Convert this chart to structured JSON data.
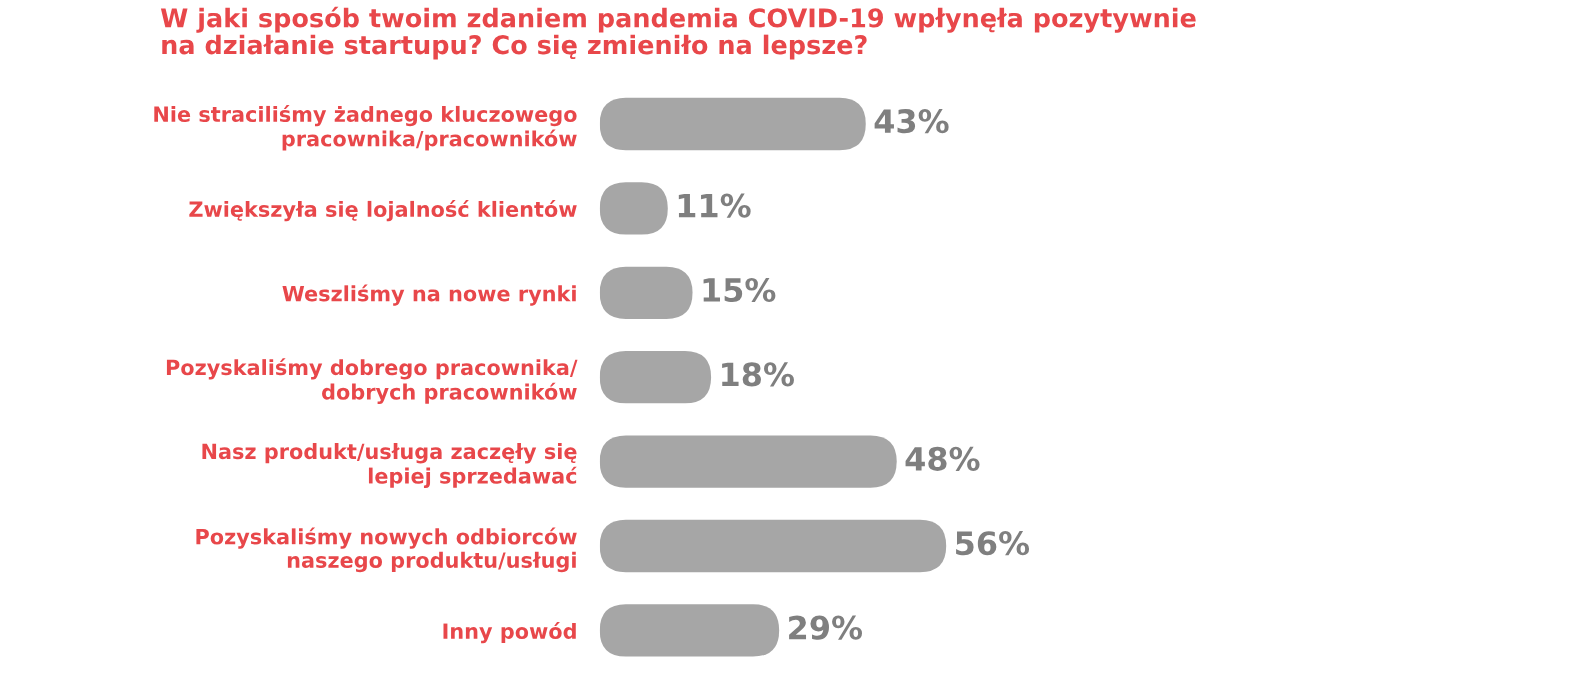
{
  "chart_data": {
    "type": "bar",
    "orientation": "horizontal",
    "title": "W jaki sposób twoim zdaniem pandemia COVID-19 wpłynęła pozytywnie\nna działanie startupu? Co się zmieniło na lepsze?",
    "categories": [
      "Nie straciliśmy żadnego kluczowego\npracownika/pracowników",
      "Zwiększyła się lojalność klientów",
      "Weszliśmy na nowe rynki",
      "Pozyskaliśmy dobrego pracownika/\ndobrych pracowników",
      "Nasz produkt/usługa zaczęły się\nlepiej sprzedawać",
      "Pozyskaliśmy nowych odbiorców\nnaszego produktu/usługi",
      "Inny powód"
    ],
    "values": [
      43,
      11,
      15,
      18,
      48,
      56,
      29
    ],
    "value_labels": [
      "43%",
      "11%",
      "15%",
      "18%",
      "48%",
      "56%",
      "29%"
    ],
    "color": "#a6a6a6",
    "tick_labels": "y",
    "grid": false
  }
}
